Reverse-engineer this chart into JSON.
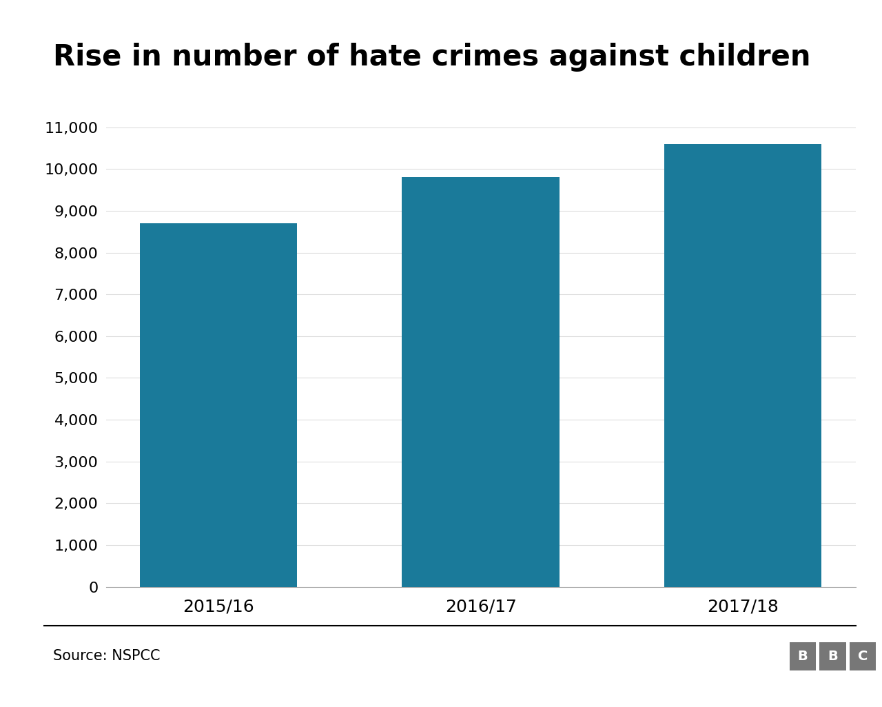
{
  "title": "Rise in number of hate crimes against children",
  "categories": [
    "2015/16",
    "2016/17",
    "2017/18"
  ],
  "values": [
    8700,
    9800,
    10600
  ],
  "bar_color": "#1a7a9a",
  "ylim": [
    0,
    11000
  ],
  "yticks": [
    0,
    1000,
    2000,
    3000,
    4000,
    5000,
    6000,
    7000,
    8000,
    9000,
    10000,
    11000
  ],
  "source_text": "Source: NSPCC",
  "bbc_text": "BBC",
  "title_fontsize": 30,
  "tick_fontsize": 16,
  "xtick_fontsize": 18,
  "background_color": "#ffffff",
  "bar_width": 0.6,
  "bar_color_hex": "#1a7a9a",
  "bbc_box_color": "#777777"
}
